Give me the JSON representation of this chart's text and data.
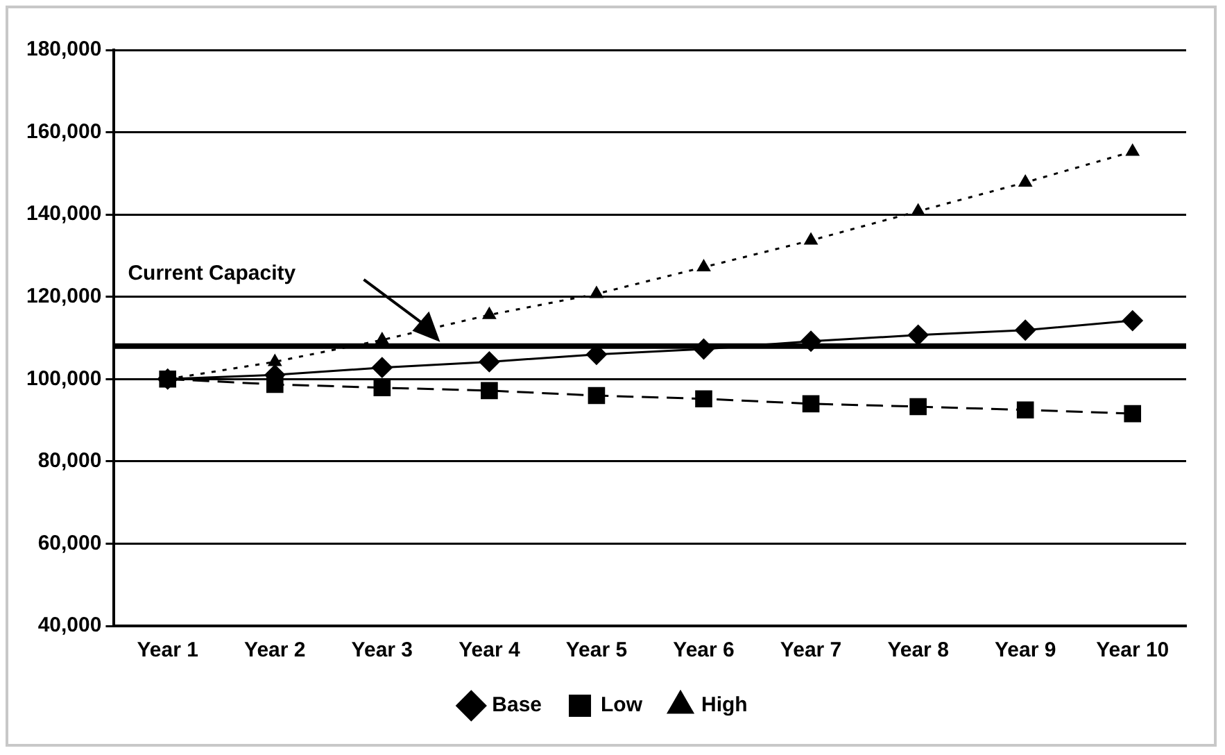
{
  "chart_data": {
    "type": "line",
    "categories": [
      "Year 1",
      "Year 2",
      "Year 3",
      "Year 4",
      "Year 5",
      "Year 6",
      "Year 7",
      "Year 8",
      "Year 9",
      "Year 10"
    ],
    "series": [
      {
        "name": "Base",
        "color": "#000000",
        "marker": "diamond",
        "line_style": "solid",
        "values": [
          100000,
          101000,
          102800,
          104200,
          106000,
          107300,
          109200,
          110700,
          111900,
          114200
        ]
      },
      {
        "name": "Low",
        "color": "#000000",
        "marker": "square",
        "line_style": "dashed",
        "values": [
          100000,
          98700,
          97900,
          97200,
          96000,
          95200,
          94000,
          93300,
          92500,
          91600
        ]
      },
      {
        "name": "High",
        "color": "#000000",
        "marker": "triangle",
        "line_style": "dotted",
        "values": [
          100000,
          104200,
          109500,
          115600,
          120700,
          127200,
          133700,
          140800,
          147800,
          155300
        ]
      }
    ],
    "ylim": [
      40000,
      180000
    ],
    "yticks": [
      {
        "value": 40000,
        "label": "40,000"
      },
      {
        "value": 60000,
        "label": "60,000"
      },
      {
        "value": 80000,
        "label": "80,000"
      },
      {
        "value": 100000,
        "label": "100,000"
      },
      {
        "value": 120000,
        "label": "120,000"
      },
      {
        "value": 140000,
        "label": "140,000"
      },
      {
        "value": 160000,
        "label": "160,000"
      },
      {
        "value": 180000,
        "label": "180,000"
      }
    ],
    "grid": "y",
    "legend": "bottom",
    "ref_lines": [
      {
        "axis": "y",
        "value": 108000,
        "label": "Current Capacity",
        "color": "#000000"
      }
    ]
  }
}
